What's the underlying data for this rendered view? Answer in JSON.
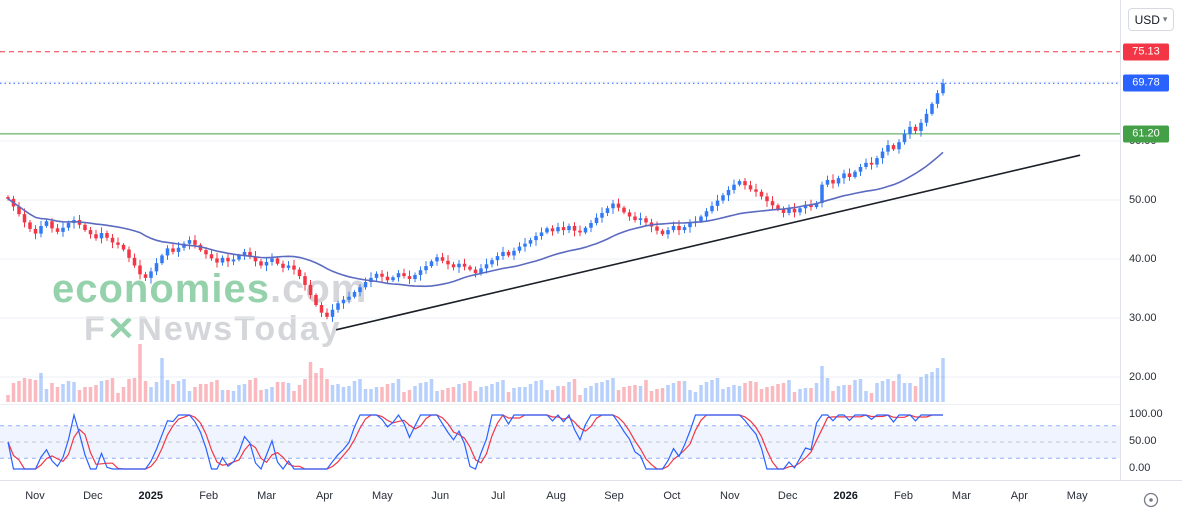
{
  "app": {
    "currency_label": "USD"
  },
  "watermark": {
    "brand": "economies",
    "brand_suffix": ".com",
    "line2_prefix": "F",
    "line2_mark": "✕",
    "line2_suffix": "NewsToday"
  },
  "price_axis": {
    "ticks": [
      {
        "label": "70.00",
        "value": 70
      },
      {
        "label": "60.00",
        "value": 60
      },
      {
        "label": "50.00",
        "value": 50
      },
      {
        "label": "40.00",
        "value": 40
      },
      {
        "label": "30.00",
        "value": 30
      },
      {
        "label": "20.00",
        "value": 20
      }
    ]
  },
  "oscillator_axis": {
    "ticks": [
      {
        "label": "100.00",
        "value": 100
      },
      {
        "label": "50.00",
        "value": 50
      },
      {
        "label": "0.00",
        "value": 0
      }
    ]
  },
  "chart_data": {
    "type": "candlestick",
    "currency": "USD",
    "last_price": 69.78,
    "ylim": [
      15.4,
      83.9
    ],
    "y_grid": [
      70,
      60,
      50,
      40,
      30,
      20
    ],
    "x_ticks": [
      {
        "label": "Nov",
        "m": 0
      },
      {
        "label": "Dec",
        "m": 1
      },
      {
        "label": "2025",
        "m": 2,
        "bold": true
      },
      {
        "label": "Feb",
        "m": 3
      },
      {
        "label": "Mar",
        "m": 4
      },
      {
        "label": "Apr",
        "m": 5
      },
      {
        "label": "May",
        "m": 6
      },
      {
        "label": "Jun",
        "m": 7
      },
      {
        "label": "Jul",
        "m": 8
      },
      {
        "label": "Aug",
        "m": 9
      },
      {
        "label": "Sep",
        "m": 10
      },
      {
        "label": "Oct",
        "m": 11
      },
      {
        "label": "Nov",
        "m": 12
      },
      {
        "label": "Dec",
        "m": 13
      },
      {
        "label": "2026",
        "m": 14,
        "bold": true
      },
      {
        "label": "Feb",
        "m": 15
      },
      {
        "label": "Mar",
        "m": 16
      },
      {
        "label": "Apr",
        "m": 17
      },
      {
        "label": "May",
        "m": 18
      }
    ],
    "price_levels": [
      {
        "label": "75.13",
        "value": 75.13,
        "color": "#f23645",
        "style": "dashed",
        "role": "resistance"
      },
      {
        "label": "69.78",
        "value": 69.78,
        "color": "#2962ff",
        "style": "dotted",
        "role": "last-price"
      },
      {
        "label": "61.20",
        "value": 61.2,
        "color": "#43a047",
        "style": "solid",
        "role": "support"
      }
    ],
    "first_open": 50.5,
    "closes": [
      50.2,
      48.9,
      47.6,
      46.2,
      45.1,
      44.3,
      45.6,
      46.4,
      45.2,
      44.6,
      45.3,
      46.1,
      46.6,
      45.8,
      44.9,
      44.2,
      43.5,
      44.4,
      43.6,
      42.8,
      42.4,
      41.6,
      40.2,
      38.9,
      37.4,
      36.8,
      37.9,
      39.3,
      40.6,
      41.8,
      41.2,
      41.9,
      42.6,
      43.2,
      42.4,
      41.5,
      40.8,
      40.1,
      39.4,
      40.2,
      39.6,
      39.9,
      40.6,
      41.2,
      40.4,
      39.6,
      38.9,
      39.5,
      40.1,
      39.2,
      38.5,
      38.9,
      38.2,
      37.1,
      35.6,
      33.9,
      32.2,
      30.9,
      30.2,
      31.4,
      32.5,
      33.1,
      33.6,
      34.4,
      35.2,
      36.1,
      36.8,
      37.5,
      37.0,
      36.4,
      36.9,
      37.6,
      37.1,
      36.6,
      37.3,
      38.1,
      38.8,
      39.6,
      40.3,
      39.7,
      39.1,
      38.6,
      39.2,
      38.7,
      38.2,
      37.6,
      38.4,
      39.1,
      39.8,
      40.5,
      41.2,
      40.6,
      41.4,
      42.1,
      42.6,
      43.2,
      43.9,
      44.5,
      45.2,
      44.7,
      45.4,
      44.9,
      45.6,
      44.8,
      44.5,
      45.3,
      46.1,
      47.0,
      47.8,
      48.6,
      49.4,
      48.7,
      47.9,
      47.2,
      46.6,
      46.9,
      46.2,
      45.5,
      44.8,
      44.2,
      44.9,
      45.6,
      44.9,
      45.4,
      46.1,
      46.4,
      47.2,
      48.1,
      49.0,
      49.9,
      50.8,
      51.7,
      52.6,
      53.2,
      52.5,
      51.8,
      51.4,
      50.6,
      49.8,
      49.1,
      48.4,
      47.8,
      48.5,
      47.9,
      48.6,
      49.2,
      48.8,
      49.5,
      52.6,
      53.4,
      52.8,
      53.7,
      54.5,
      53.9,
      54.8,
      55.6,
      56.3,
      56.0,
      57.1,
      58.2,
      59.3,
      58.6,
      59.8,
      61.2,
      62.4,
      61.7,
      63.1,
      64.6,
      66.3,
      68.1,
      69.78
    ],
    "colors": {
      "up": "#3179f5",
      "down": "#f23645",
      "ma": "#5c6bc0",
      "trend": "#1b1f27",
      "volume_up": "rgba(49,121,245,0.35)",
      "volume_down": "rgba(242,54,69,0.35)",
      "grid": "#eceff4"
    },
    "indicators": {
      "ma": {
        "type": "sma",
        "window": 25
      },
      "stochastic": {
        "window": 10,
        "smooth": 3,
        "k_color": "#2962ff",
        "d_color": "#f23645",
        "upper": 80,
        "middle": 50,
        "lower": 20,
        "range": [
          0,
          100
        ]
      }
    },
    "trendline": {
      "m1": 5.2,
      "price1": 28.0,
      "m2": 18.05,
      "price2": 57.6
    },
    "volume_spikes": {
      "24": 58,
      "28": 44,
      "55": 40,
      "57": 34,
      "148": 36,
      "168": 30,
      "169": 34,
      "170": 44
    }
  }
}
